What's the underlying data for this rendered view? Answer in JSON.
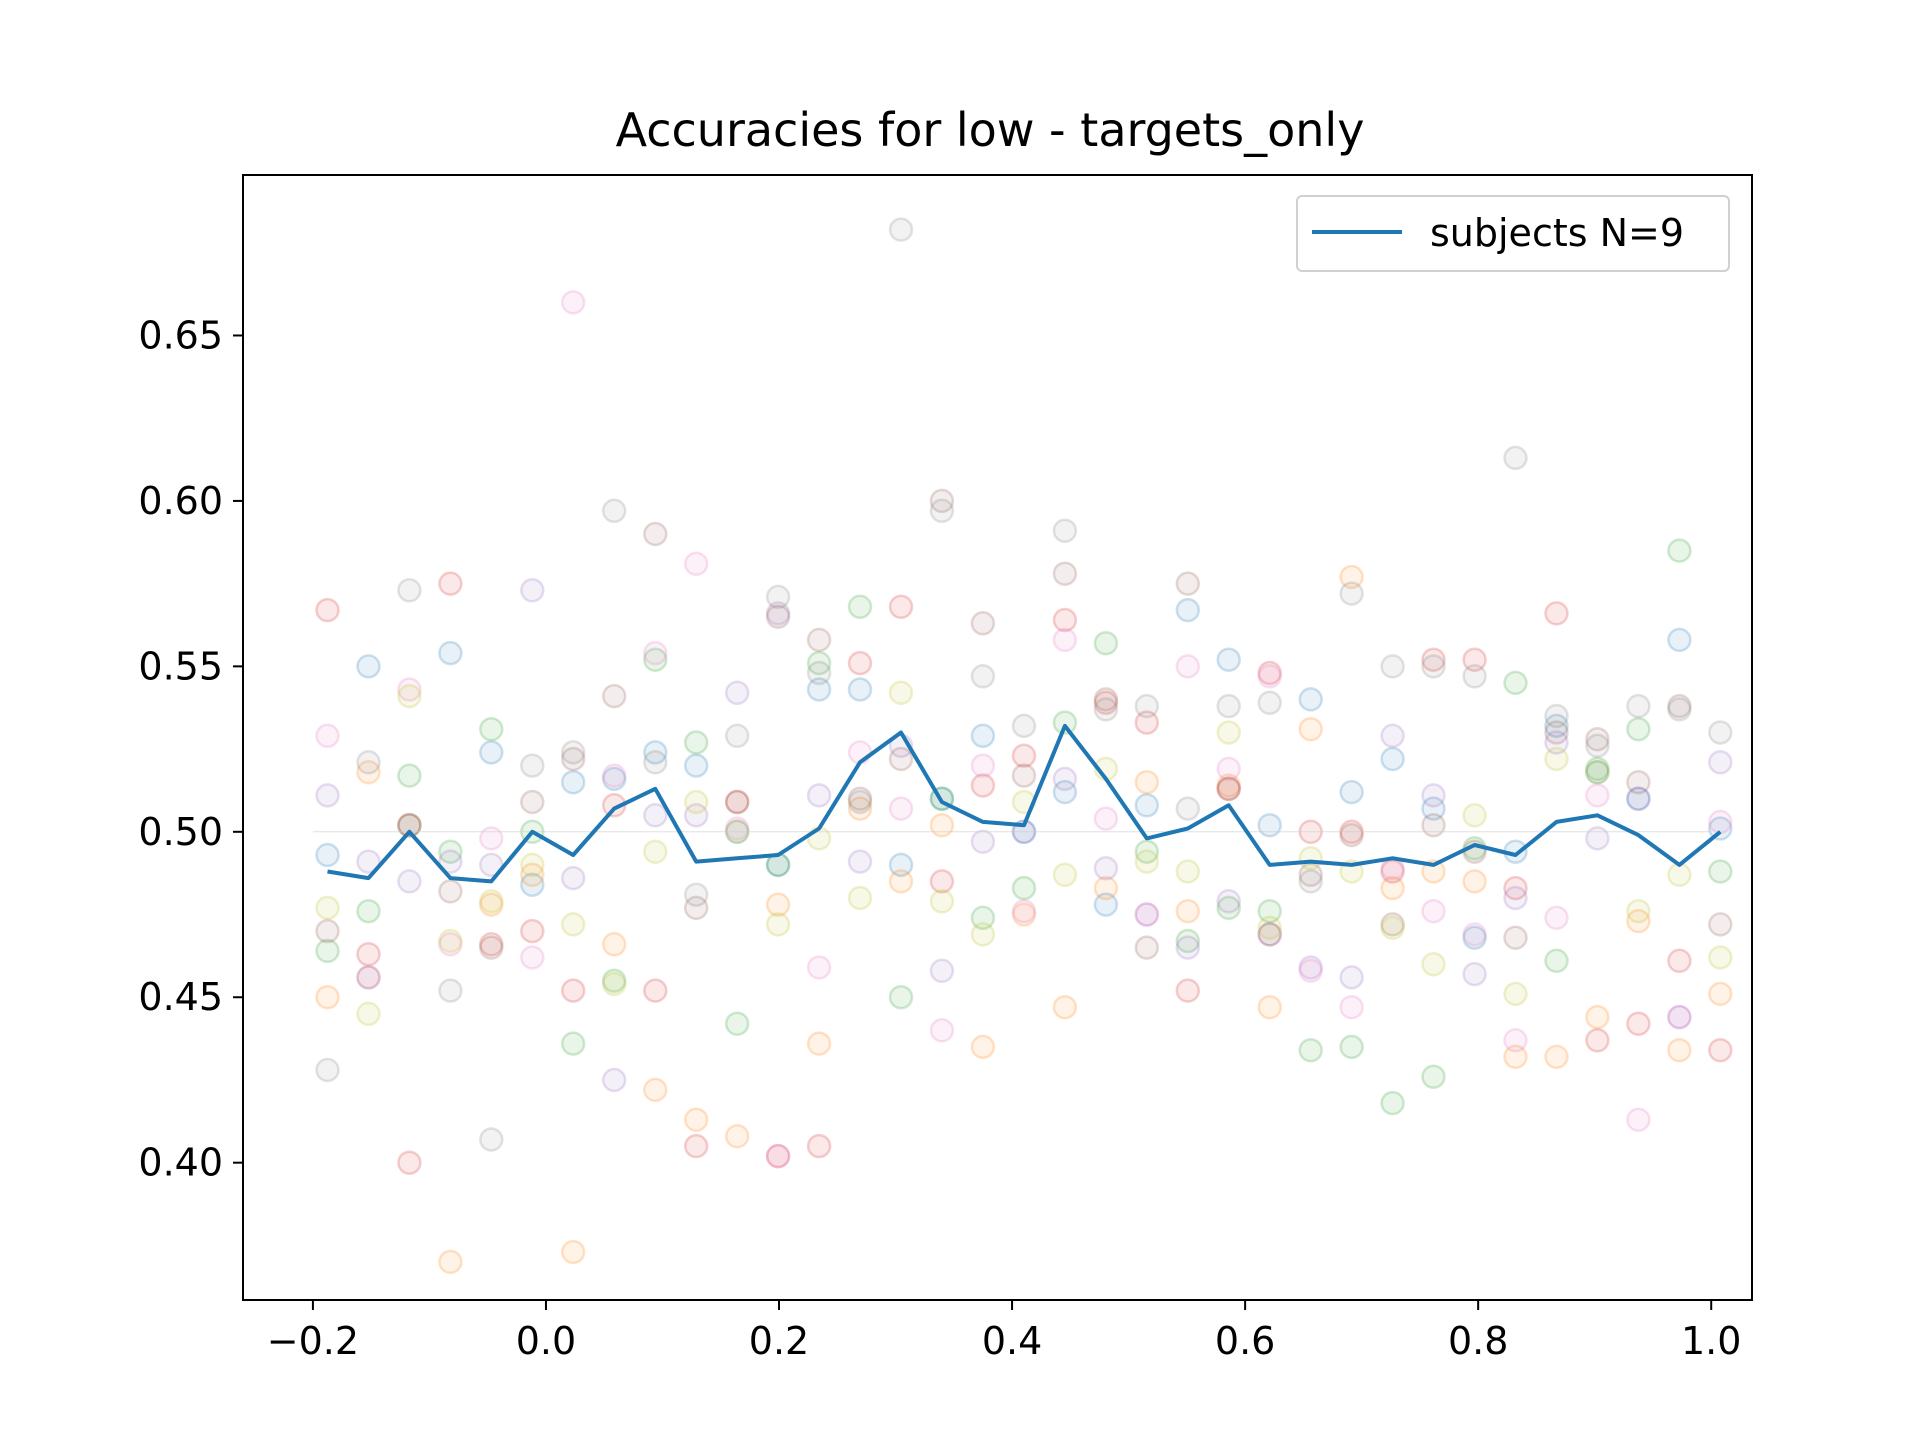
{
  "chart_data": {
    "type": "line",
    "title": "Accuracies for low - targets_only",
    "xlabel": "",
    "ylabel": "",
    "xlim": [
      -0.26,
      1.035
    ],
    "ylim": [
      0.3585,
      0.6985
    ],
    "x_ticks": [
      -0.2,
      0.0,
      0.2,
      0.4,
      0.6,
      0.8,
      1.0
    ],
    "x_tick_labels": [
      "−0.2",
      "0.0",
      "0.2",
      "0.4",
      "0.6",
      "0.8",
      "1.0"
    ],
    "y_ticks": [
      0.4,
      0.45,
      0.5,
      0.55,
      0.6,
      0.65
    ],
    "y_tick_labels": [
      "0.40",
      "0.45",
      "0.50",
      "0.55",
      "0.60",
      "0.65"
    ],
    "chance_level": 0.5,
    "legend": {
      "position": "upper right",
      "entries": [
        "subjects N=9"
      ]
    },
    "series": [
      {
        "name": "subjects N=9",
        "color": "#1f77b4",
        "x": [
          -0.1875,
          -0.1523,
          -0.1172,
          -0.082,
          -0.0469,
          -0.0117,
          0.0234,
          0.0586,
          0.0938,
          0.1289,
          0.1641,
          0.1992,
          0.2344,
          0.2695,
          0.3047,
          0.3398,
          0.375,
          0.4102,
          0.4453,
          0.4805,
          0.5156,
          0.5508,
          0.5859,
          0.6211,
          0.6563,
          0.6914,
          0.7266,
          0.7617,
          0.7969,
          0.832,
          0.8672,
          0.9023,
          0.9375,
          0.9727,
          1.0078
        ],
        "y": [
          0.488,
          0.486,
          0.5,
          0.486,
          0.485,
          0.5,
          0.493,
          0.507,
          0.513,
          0.491,
          0.492,
          0.493,
          0.501,
          0.521,
          0.53,
          0.509,
          0.503,
          0.502,
          0.532,
          0.516,
          0.498,
          0.501,
          0.508,
          0.49,
          0.491,
          0.49,
          0.492,
          0.49,
          0.496,
          0.493,
          0.503,
          0.505,
          0.499,
          0.49,
          0.5
        ]
      }
    ],
    "subject_points": {
      "colors": [
        "#1f77b4",
        "#ff7f0e",
        "#2ca02c",
        "#d62728",
        "#9467bd",
        "#8c564b",
        "#e377c2",
        "#7f7f7f",
        "#bcbd22"
      ],
      "x": [
        -0.1875,
        -0.1523,
        -0.1172,
        -0.082,
        -0.0469,
        -0.0117,
        0.0234,
        0.0586,
        0.0938,
        0.1289,
        0.1641,
        0.1992,
        0.2344,
        0.2695,
        0.3047,
        0.3398,
        0.375,
        0.4102,
        0.4453,
        0.4805,
        0.5156,
        0.5508,
        0.5859,
        0.6211,
        0.6563,
        0.6914,
        0.7266,
        0.7617,
        0.7969,
        0.832,
        0.8672,
        0.9023,
        0.9375,
        0.9727,
        1.0078
      ],
      "values": [
        [
          0.493,
          0.55,
          0.502,
          0.554,
          0.524,
          0.484,
          0.515,
          0.516,
          0.524,
          0.52,
          0.5,
          0.49,
          0.543,
          0.543,
          0.49,
          0.51,
          0.529,
          0.5,
          0.512,
          0.478,
          0.508,
          0.567,
          0.552,
          0.502,
          0.54,
          0.512,
          0.522,
          0.507,
          0.468,
          0.494,
          0.532,
          0.518,
          0.51,
          0.558,
          0.501
        ],
        [
          0.45,
          0.518,
          0.502,
          0.37,
          0.478,
          0.487,
          0.373,
          0.466,
          0.422,
          0.413,
          0.408,
          0.478,
          0.436,
          0.507,
          0.485,
          0.502,
          0.435,
          0.475,
          0.447,
          0.483,
          0.515,
          0.476,
          0.514,
          0.447,
          0.531,
          0.577,
          0.483,
          0.488,
          0.485,
          0.432,
          0.432,
          0.444,
          0.473,
          0.434,
          0.451
        ],
        [
          0.464,
          0.476,
          0.517,
          0.494,
          0.531,
          0.5,
          0.436,
          0.455,
          0.552,
          0.527,
          0.442,
          0.49,
          0.551,
          0.568,
          0.45,
          0.51,
          0.474,
          0.483,
          0.533,
          0.557,
          0.494,
          0.467,
          0.477,
          0.476,
          0.434,
          0.435,
          0.418,
          0.426,
          0.495,
          0.545,
          0.461,
          0.519,
          0.531,
          0.585,
          0.488
        ],
        [
          0.567,
          0.463,
          0.4,
          0.575,
          0.466,
          0.47,
          0.452,
          0.508,
          0.452,
          0.405,
          0.509,
          0.402,
          0.405,
          0.551,
          0.568,
          0.485,
          0.514,
          0.523,
          0.564,
          0.539,
          0.533,
          0.452,
          0.513,
          0.548,
          0.5,
          0.5,
          0.488,
          0.552,
          0.552,
          0.483,
          0.566,
          0.437,
          0.442,
          0.461,
          0.434
        ],
        [
          0.511,
          0.491,
          0.485,
          0.491,
          0.49,
          0.573,
          0.486,
          0.425,
          0.505,
          0.505,
          0.542,
          0.566,
          0.511,
          0.491,
          0.526,
          0.458,
          0.497,
          0.5,
          0.516,
          0.489,
          0.475,
          0.465,
          0.479,
          0.469,
          0.459,
          0.456,
          0.529,
          0.511,
          0.457,
          0.48,
          0.527,
          0.498,
          0.51,
          0.444,
          0.521
        ],
        [
          0.47,
          0.456,
          0.502,
          0.482,
          0.465,
          0.509,
          0.522,
          0.541,
          0.59,
          0.477,
          0.509,
          0.565,
          0.558,
          0.51,
          0.522,
          0.6,
          0.563,
          0.517,
          0.578,
          0.54,
          0.465,
          0.575,
          0.513,
          0.469,
          0.487,
          0.499,
          0.472,
          0.502,
          0.494,
          0.468,
          0.53,
          0.528,
          0.515,
          0.538,
          0.472
        ],
        [
          0.529,
          0.456,
          0.543,
          0.466,
          0.498,
          0.462,
          0.66,
          0.517,
          0.554,
          0.581,
          0.501,
          0.402,
          0.459,
          0.524,
          0.507,
          0.44,
          0.52,
          0.476,
          0.558,
          0.504,
          0.475,
          0.55,
          0.519,
          0.547,
          0.458,
          0.447,
          0.489,
          0.476,
          0.469,
          0.437,
          0.474,
          0.511,
          0.413,
          0.444,
          0.503
        ],
        [
          0.428,
          0.521,
          0.573,
          0.452,
          0.407,
          0.52,
          0.524,
          0.597,
          0.521,
          0.481,
          0.529,
          0.571,
          0.548,
          0.509,
          0.682,
          0.597,
          0.547,
          0.532,
          0.591,
          0.537,
          0.538,
          0.507,
          0.538,
          0.539,
          0.485,
          0.572,
          0.55,
          0.55,
          0.547,
          0.613,
          0.535,
          0.526,
          0.538,
          0.537,
          0.53
        ],
        [
          0.477,
          0.445,
          0.541,
          0.467,
          0.479,
          0.49,
          0.472,
          0.454,
          0.494,
          0.509,
          0.5,
          0.472,
          0.498,
          0.48,
          0.542,
          0.479,
          0.469,
          0.509,
          0.487,
          0.519,
          0.491,
          0.488,
          0.53,
          0.471,
          0.492,
          0.488,
          0.471,
          0.46,
          0.505,
          0.451,
          0.522,
          0.518,
          0.476,
          0.487,
          0.462
        ]
      ]
    }
  }
}
